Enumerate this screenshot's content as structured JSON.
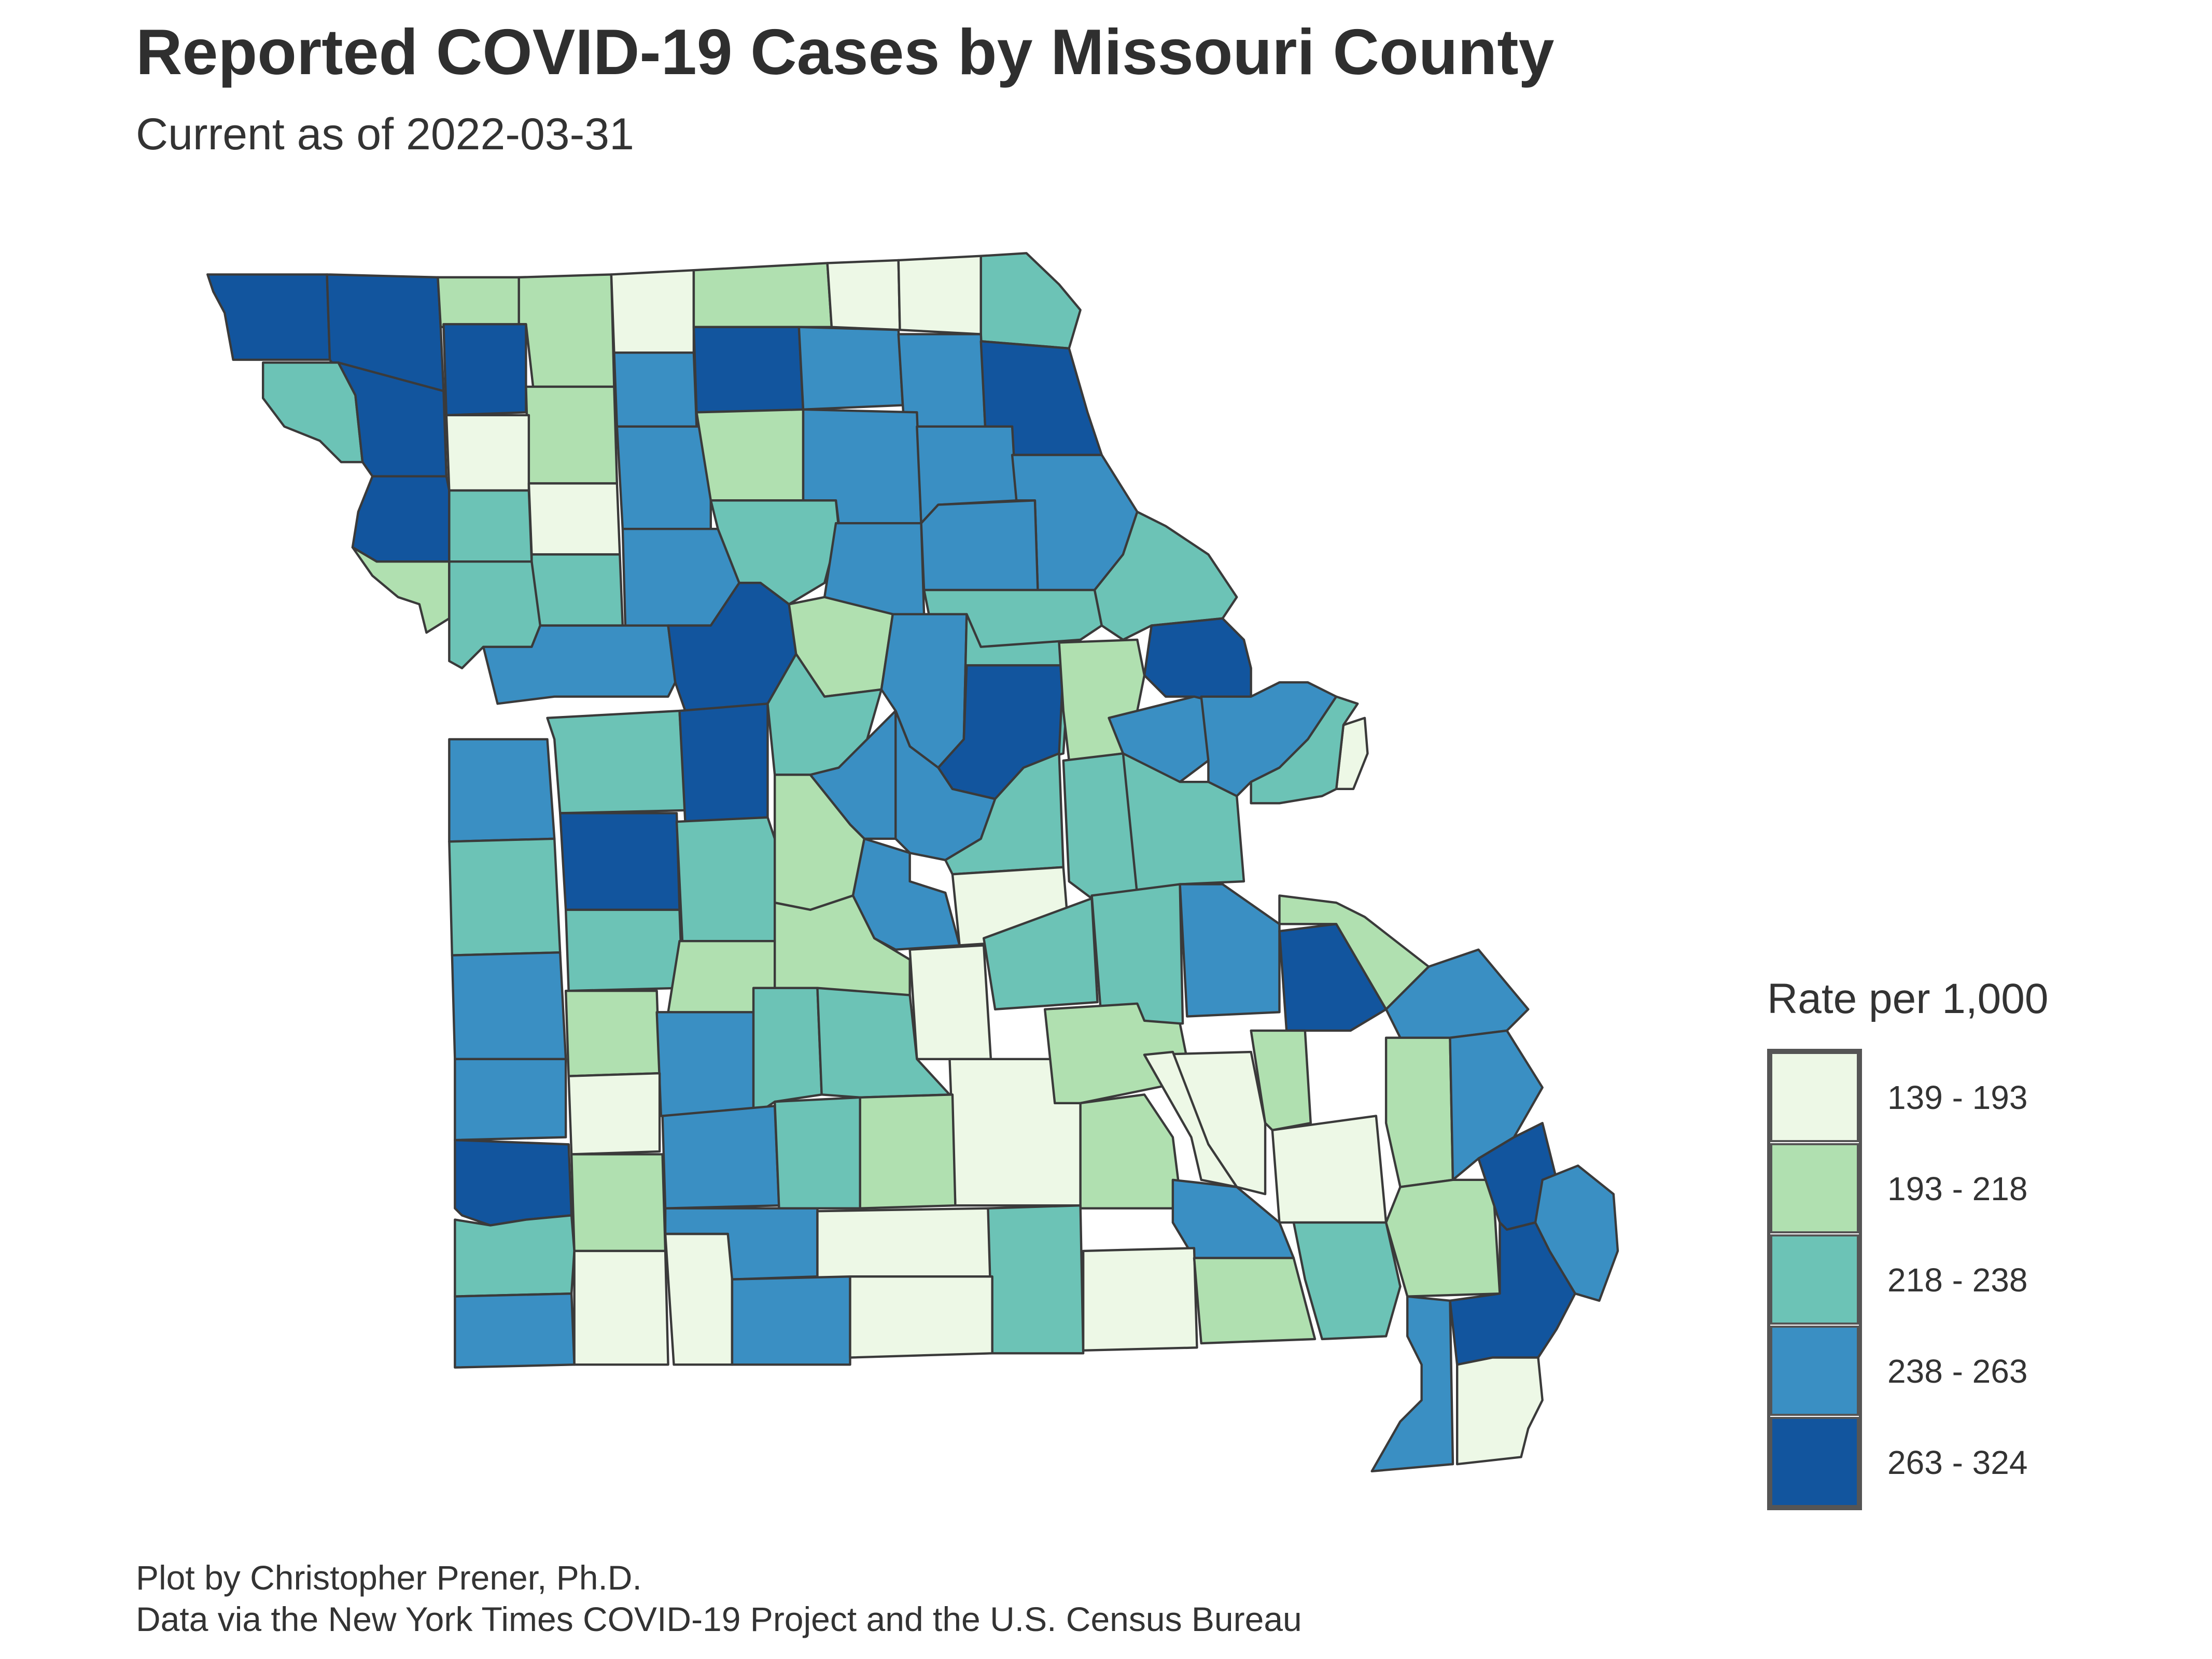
{
  "title": "Reported COVID-19 Cases by Missouri County",
  "subtitle": "Current as of 2022-03-31",
  "caption": {
    "line1": "Plot by Christopher Prener, Ph.D.",
    "line2": "Data via the New York Times COVID-19 Project and the U.S. Census Bureau"
  },
  "legend": {
    "title": "Rate per 1,000",
    "items": [
      {
        "label": "139 - 193",
        "color": "#edf8e6"
      },
      {
        "label": "193 - 218",
        "color": "#b0e0b0"
      },
      {
        "label": "218 - 238",
        "color": "#6cc3b6"
      },
      {
        "label": "238 - 263",
        "color": "#3a8fc3"
      },
      {
        "label": "263 - 324",
        "color": "#12559e"
      }
    ]
  },
  "colors": {
    "border": "#3a3a3a",
    "c1": "#edf8e6",
    "c2": "#b0e0b0",
    "c3": "#6cc3b6",
    "c4": "#3a8fc3",
    "c5": "#12559e"
  }
}
